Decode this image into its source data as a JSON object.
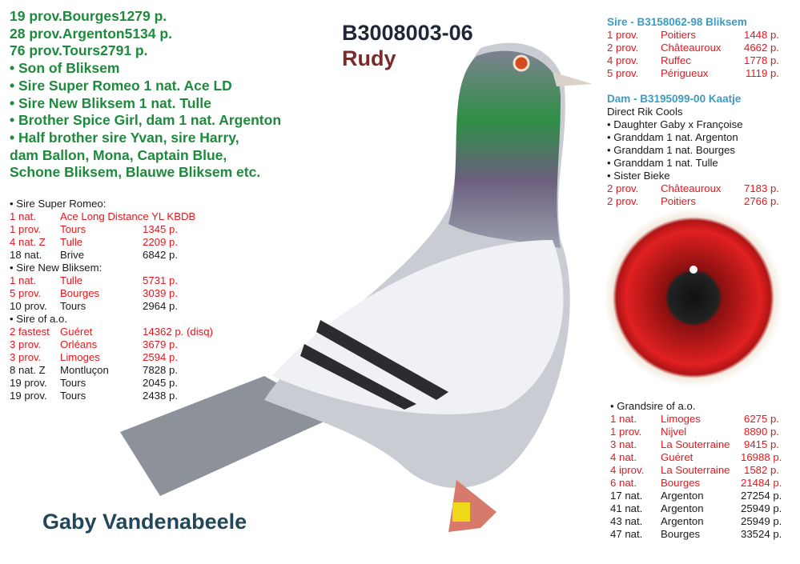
{
  "title": "B3008003-06",
  "subtitle": "Rudy",
  "breeder": "Gaby Vandenabeele",
  "highlights": [
    "19 prov.Bourges1279 p.",
    "28 prov.Argenton5134 p.",
    "76 prov.Tours2791 p.",
    "• Son of Bliksem",
    "• Sire Super Romeo 1 nat. Ace LD",
    "• Sire New Bliksem 1 nat. Tulle",
    "• Brother Spice Girl, dam 1 nat. Argenton",
    "• Half brother sire Yvan, sire Harry,",
    "dam Ballon, Mona, Captain Blue,",
    "Schone Bliksem, Blauwe Bliksem etc."
  ],
  "left_table": [
    {
      "head": "• Sire Super Romeo:"
    },
    {
      "c": "red",
      "cols": [
        "1 nat.",
        "Ace Long Distance YL KBDB",
        ""
      ]
    },
    {
      "c": "red",
      "cols": [
        "1 prov.",
        "Tours",
        "1345 p."
      ]
    },
    {
      "c": "red",
      "cols": [
        "4 nat. Z",
        "Tulle",
        "2209 p."
      ]
    },
    {
      "c": "black",
      "cols": [
        "18 nat.",
        "Brive",
        "6842 p."
      ]
    },
    {
      "head": "• Sire New Bliksem:"
    },
    {
      "c": "red",
      "cols": [
        "1 nat.",
        "Tulle",
        "5731 p."
      ]
    },
    {
      "c": "red",
      "cols": [
        "5 prov.",
        "Bourges",
        "3039 p."
      ]
    },
    {
      "c": "black",
      "cols": [
        "10 prov.",
        "Tours",
        "2964 p."
      ]
    },
    {
      "head": "• Sire of a.o."
    },
    {
      "c": "red",
      "cols": [
        "2 fastest",
        "Guéret",
        "14362 p. (disq)"
      ]
    },
    {
      "c": "red",
      "cols": [
        "3 prov.",
        "Orléans",
        "3679 p."
      ]
    },
    {
      "c": "red",
      "cols": [
        "3 prov.",
        "Limoges",
        "2594 p."
      ]
    },
    {
      "c": "black",
      "cols": [
        "8 nat. Z",
        "Montluçon",
        "7828 p."
      ]
    },
    {
      "c": "black",
      "cols": [
        "19 prov.",
        "Tours",
        "2045 p."
      ]
    },
    {
      "c": "black",
      "cols": [
        "19 prov.",
        "Tours",
        "2438 p."
      ]
    }
  ],
  "right_table": [
    {
      "blue": "Sire - B3158062-98 Bliksem"
    },
    {
      "c": "red",
      "cols": [
        "1 prov.",
        "Poitiers",
        "1448 p."
      ]
    },
    {
      "c": "red",
      "cols": [
        "2 prov.",
        "Châteauroux",
        "4662 p."
      ]
    },
    {
      "c": "red",
      "cols": [
        "4 prov.",
        "Ruffec",
        "1778 p."
      ]
    },
    {
      "c": "red",
      "cols": [
        "5 prov.",
        "Périgueux",
        "1119 p."
      ]
    },
    {
      "spacer": ""
    },
    {
      "blue": "Dam - B3195099-00 Kaatje"
    },
    {
      "head": "Direct Rik Cools"
    },
    {
      "head": "• Daughter Gaby x Françoise"
    },
    {
      "head": "• Granddam 1 nat. Argenton"
    },
    {
      "head": "• Granddam 1 nat. Bourges"
    },
    {
      "head": "• Granddam 1 nat. Tulle"
    },
    {
      "head": "• Sister Bieke"
    },
    {
      "c": "red",
      "cols": [
        "2 prov.",
        "Châteauroux",
        "7183 p."
      ]
    },
    {
      "c": "red",
      "cols": [
        "2 prov.",
        "Poitiers",
        "2766 p."
      ]
    }
  ],
  "grandsire_table": [
    {
      "head": "• Grandsire of a.o."
    },
    {
      "c": "red",
      "cols": [
        "1 nat.",
        "Limoges",
        "6275 p."
      ]
    },
    {
      "c": "red",
      "cols": [
        "1 prov.",
        "Nijvel",
        "8890 p."
      ]
    },
    {
      "c": "red",
      "cols": [
        "3 nat.",
        "La Souterraine",
        "9415 p."
      ]
    },
    {
      "c": "red",
      "cols": [
        "4 nat.",
        "Guéret",
        "16988 p."
      ]
    },
    {
      "c": "red",
      "cols": [
        "4 iprov.",
        "La Souterraine",
        "1582 p."
      ]
    },
    {
      "c": "red",
      "cols": [
        "6 nat.",
        "Bourges",
        "21484 p."
      ]
    },
    {
      "c": "black",
      "cols": [
        "17 nat.",
        "Argenton",
        "27254 p."
      ]
    },
    {
      "c": "black",
      "cols": [
        "41 nat.",
        "Argenton",
        "25949 p."
      ]
    },
    {
      "c": "black",
      "cols": [
        "43 nat.",
        "Argenton",
        "25949 p."
      ]
    },
    {
      "c": "black",
      "cols": [
        "47 nat.",
        "Bourges",
        "33524 p."
      ]
    }
  ],
  "colors": {
    "green": "#1d8a3c",
    "red": "#e8161c",
    "blue": "#3b9cc2",
    "title": "#1f2636",
    "subtitle": "#7b2a2a",
    "breeder": "#23475a"
  }
}
